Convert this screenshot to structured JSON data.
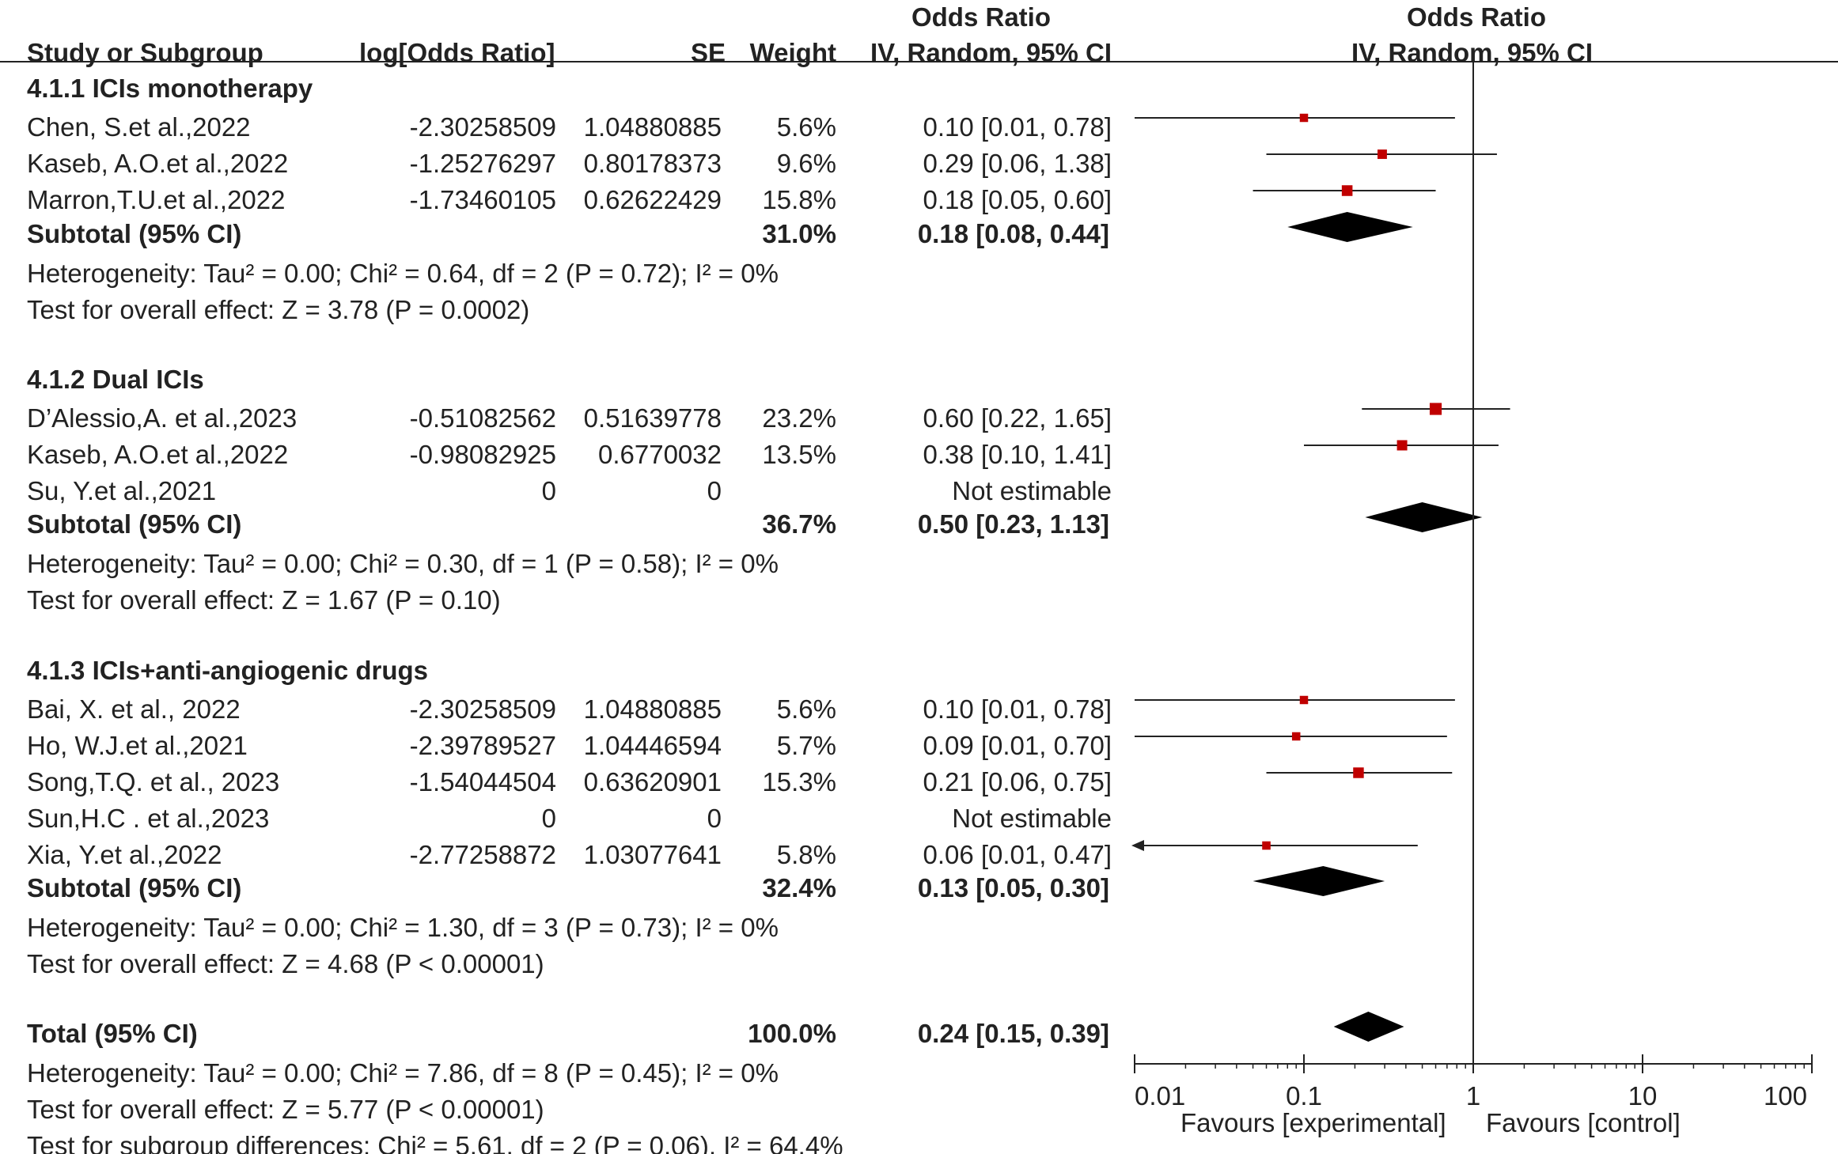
{
  "header": {
    "or_top_left": "Odds Ratio",
    "or_top_right": "Odds Ratio",
    "study": "Study or Subgroup",
    "logor": "log[Odds Ratio]",
    "se": "SE",
    "weight": "Weight",
    "ci_left": "IV, Random, 95% CI",
    "ci_right": "IV, Random, 95% CI"
  },
  "groups": [
    {
      "title": "4.1.1 ICIs monotherapy",
      "studies": [
        {
          "name": "Chen, S.et al.,2022",
          "logor": "-2.30258509",
          "se": "1.04880885",
          "weight": "5.6%",
          "ci": "0.10 [0.01, 0.78]"
        },
        {
          "name": "Kaseb, A.O.et al.,2022",
          "logor": "-1.25276297",
          "se": "0.80178373",
          "weight": "9.6%",
          "ci": "0.29 [0.06, 1.38]"
        },
        {
          "name": "Marron,T.U.et al.,2022",
          "logor": "-1.73460105",
          "se": "0.62622429",
          "weight": "15.8%",
          "ci": "0.18 [0.05, 0.60]"
        }
      ],
      "subtotal": {
        "label": "Subtotal (95% CI)",
        "weight": "31.0%",
        "ci": "0.18 [0.08, 0.44]"
      },
      "heterogeneity": "Heterogeneity: Tau² = 0.00; Chi² = 0.64, df = 2 (P = 0.72); I² = 0%",
      "overall": "Test for overall effect: Z = 3.78 (P = 0.0002)"
    },
    {
      "title": "4.1.2 Dual ICIs",
      "studies": [
        {
          "name": "D’Alessio,A. et al.,2023",
          "logor": "-0.51082562",
          "se": "0.51639778",
          "weight": "23.2%",
          "ci": "0.60 [0.22, 1.65]"
        },
        {
          "name": "Kaseb, A.O.et al.,2022",
          "logor": "-0.98082925",
          "se": "0.6770032",
          "weight": "13.5%",
          "ci": "0.38 [0.10, 1.41]"
        },
        {
          "name": "Su, Y.et al.,2021",
          "logor": "0",
          "se": "0",
          "weight": "",
          "ci": "Not estimable"
        }
      ],
      "subtotal": {
        "label": "Subtotal (95% CI)",
        "weight": "36.7%",
        "ci": "0.50 [0.23, 1.13]"
      },
      "heterogeneity": "Heterogeneity: Tau² = 0.00; Chi² = 0.30, df = 1 (P = 0.58); I² = 0%",
      "overall": "Test for overall effect: Z = 1.67 (P = 0.10)"
    },
    {
      "title": "4.1.3 ICIs+anti-angiogenic drugs",
      "studies": [
        {
          "name": "Bai, X. et al., 2022",
          "logor": "-2.30258509",
          "se": "1.04880885",
          "weight": "5.6%",
          "ci": "0.10 [0.01, 0.78]"
        },
        {
          "name": "Ho, W.J.et al.,2021",
          "logor": "-2.39789527",
          "se": "1.04446594",
          "weight": "5.7%",
          "ci": "0.09 [0.01, 0.70]"
        },
        {
          "name": "Song,T.Q. et al., 2023",
          "logor": "-1.54044504",
          "se": "0.63620901",
          "weight": "15.3%",
          "ci": "0.21 [0.06, 0.75]"
        },
        {
          "name": "Sun,H.C . et al.,2023",
          "logor": "0",
          "se": "0",
          "weight": "",
          "ci": "Not estimable"
        },
        {
          "name": "Xia, Y.et al.,2022",
          "logor": "-2.77258872",
          "se": "1.03077641",
          "weight": "5.8%",
          "ci": "0.06 [0.01, 0.47]"
        }
      ],
      "subtotal": {
        "label": "Subtotal (95% CI)",
        "weight": "32.4%",
        "ci": "0.13 [0.05, 0.30]"
      },
      "heterogeneity": "Heterogeneity: Tau² = 0.00; Chi² = 1.30, df = 3 (P = 0.73); I² = 0%",
      "overall": "Test for overall effect: Z = 4.68 (P < 0.00001)"
    }
  ],
  "total": {
    "label": "Total (95% CI)",
    "weight": "100.0%",
    "ci": "0.24 [0.15, 0.39]",
    "heterogeneity": "Heterogeneity: Tau² = 0.00; Chi² = 7.86, df = 8 (P = 0.45); I² = 0%",
    "overall": "Test for overall effect: Z = 5.77 (P < 0.00001)",
    "subgroup": "Test for subgroup differences: Chi² = 5.61, df = 2 (P = 0.06), I² = 64.4%"
  },
  "axis": {
    "favours_left": "Favours [experimental]",
    "favours_right": "Favours [control]"
  },
  "colors": {
    "marker": "#c00000",
    "line": "#222222",
    "diamond": "#000000"
  },
  "chart_data": {
    "type": "forest",
    "title": "Odds Ratio IV, Random, 95% CI",
    "scale": "log",
    "xlim": [
      0.01,
      100
    ],
    "null_value": 1,
    "ticks": [
      0.01,
      0.1,
      1,
      10,
      100
    ],
    "tick_labels": [
      "0.01",
      "0.1",
      "1",
      "10",
      "100"
    ],
    "xlabel_left": "Favours [experimental]",
    "xlabel_right": "Favours [control]",
    "studies": [
      {
        "name": "Chen, S.et al.,2022",
        "or": 0.1,
        "lo": 0.01,
        "hi": 0.78,
        "weight": 5.6
      },
      {
        "name": "Kaseb, A.O.et al.,2022",
        "or": 0.29,
        "lo": 0.06,
        "hi": 1.38,
        "weight": 9.6
      },
      {
        "name": "Marron,T.U.et al.,2022",
        "or": 0.18,
        "lo": 0.05,
        "hi": 0.6,
        "weight": 15.8
      },
      {
        "name": "D’Alessio,A. et al.,2023",
        "or": 0.6,
        "lo": 0.22,
        "hi": 1.65,
        "weight": 23.2
      },
      {
        "name": "Kaseb, A.O.et al.,2022",
        "or": 0.38,
        "lo": 0.1,
        "hi": 1.41,
        "weight": 13.5
      },
      {
        "name": "Bai, X. et al., 2022",
        "or": 0.1,
        "lo": 0.01,
        "hi": 0.78,
        "weight": 5.6
      },
      {
        "name": "Ho, W.J.et al.,2021",
        "or": 0.09,
        "lo": 0.01,
        "hi": 0.7,
        "weight": 5.7
      },
      {
        "name": "Song,T.Q. et al., 2023",
        "or": 0.21,
        "lo": 0.06,
        "hi": 0.75,
        "weight": 15.3
      },
      {
        "name": "Xia, Y.et al.,2022",
        "or": 0.06,
        "lo": 0.01,
        "hi": 0.47,
        "weight": 5.8
      }
    ],
    "subtotals": [
      {
        "name": "4.1.1 ICIs monotherapy",
        "or": 0.18,
        "lo": 0.08,
        "hi": 0.44
      },
      {
        "name": "4.1.2 Dual ICIs",
        "or": 0.5,
        "lo": 0.23,
        "hi": 1.13
      },
      {
        "name": "4.1.3 ICIs+anti-angiogenic drugs",
        "or": 0.13,
        "lo": 0.05,
        "hi": 0.3
      }
    ],
    "total": {
      "or": 0.24,
      "lo": 0.15,
      "hi": 0.39
    }
  }
}
